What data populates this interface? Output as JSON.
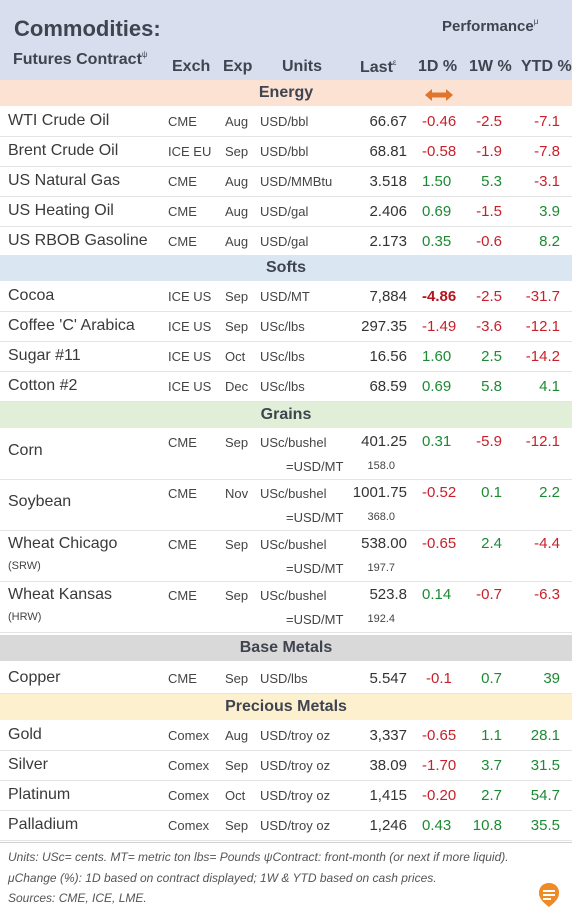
{
  "header": {
    "title": "Commodities:",
    "subtitle": "Futures Contract",
    "subtitle_sup": "ψ",
    "performance": "Performance",
    "performance_sup": "μ",
    "col_exch": "Exch",
    "col_exp": "Exp",
    "col_units": "Units",
    "col_last": "Last",
    "col_last_sup": "ε",
    "col_1d": "1D %",
    "col_1w": "1W %",
    "col_ytd": "YTD %"
  },
  "sections": {
    "energy": "Energy",
    "softs": "Softs",
    "grains": "Grains",
    "base_metals": "Base Metals",
    "precious_metals": "Precious Metals"
  },
  "energy": [
    {
      "name": "WTI Crude Oil",
      "exch": "CME",
      "exp": "Aug",
      "units": "USD/bbl",
      "last": "66.67",
      "d1": "-0.46",
      "w1": "-2.5",
      "ytd": "-7.1"
    },
    {
      "name": "Brent Crude Oil",
      "exch": "ICE EU",
      "exp": "Sep",
      "units": "USD/bbl",
      "last": "68.81",
      "d1": "-0.58",
      "w1": "-1.9",
      "ytd": "-7.8"
    },
    {
      "name": "US Natural Gas",
      "exch": "CME",
      "exp": "Aug",
      "units": "USD/MMBtu",
      "last": "3.518",
      "d1": "1.50",
      "w1": "5.3",
      "ytd": "-3.1"
    },
    {
      "name": "US Heating Oil",
      "exch": "CME",
      "exp": "Aug",
      "units": "USD/gal",
      "last": "2.406",
      "d1": "0.69",
      "w1": "-1.5",
      "ytd": "3.9"
    },
    {
      "name": "US RBOB Gasoline",
      "exch": "CME",
      "exp": "Aug",
      "units": "USD/gal",
      "last": "2.173",
      "d1": "0.35",
      "w1": "-0.6",
      "ytd": "8.2"
    }
  ],
  "softs": [
    {
      "name": "Cocoa",
      "exch": "ICE US",
      "exp": "Sep",
      "units": "USD/MT",
      "last": "7,884",
      "d1": "-4.86",
      "w1": "-2.5",
      "ytd": "-31.7"
    },
    {
      "name": "Coffee 'C' Arabica",
      "exch": "ICE US",
      "exp": "Sep",
      "units": "USc/lbs",
      "last": "297.35",
      "d1": "-1.49",
      "w1": "-3.6",
      "ytd": "-12.1"
    },
    {
      "name": "Sugar #11",
      "exch": "ICE US",
      "exp": "Oct",
      "units": "USc/lbs",
      "last": "16.56",
      "d1": "1.60",
      "w1": "2.5",
      "ytd": "-14.2"
    },
    {
      "name": "Cotton #2",
      "exch": "ICE US",
      "exp": "Dec",
      "units": "USc/lbs",
      "last": "68.59",
      "d1": "0.69",
      "w1": "5.8",
      "ytd": "4.1"
    }
  ],
  "grains": [
    {
      "name": "Corn",
      "sub": "",
      "exch": "CME",
      "exp": "Sep",
      "units": "USc/bushel",
      "units2": "=USD/MT",
      "last": "401.25",
      "last2": "158.0",
      "d1": "0.31",
      "w1": "-5.9",
      "ytd": "-12.1"
    },
    {
      "name": "Soybean",
      "sub": "",
      "exch": "CME",
      "exp": "Nov",
      "units": "USc/bushel",
      "units2": "=USD/MT",
      "last": "1001.75",
      "last2": "368.0",
      "d1": "-0.52",
      "w1": "0.1",
      "ytd": "2.2"
    },
    {
      "name": "Wheat Chicago",
      "sub": "(SRW)",
      "exch": "CME",
      "exp": "Sep",
      "units": "USc/bushel",
      "units2": "=USD/MT",
      "last": "538.00",
      "last2": "197.7",
      "d1": "-0.65",
      "w1": "2.4",
      "ytd": "-4.4"
    },
    {
      "name": "Wheat Kansas",
      "sub": "(HRW)",
      "exch": "CME",
      "exp": "Sep",
      "units": "USc/bushel",
      "units2": "=USD/MT",
      "last": "523.8",
      "last2": "192.4",
      "d1": "0.14",
      "w1": "-0.7",
      "ytd": "-6.3"
    }
  ],
  "base_metals": [
    {
      "name": "Copper",
      "exch": "CME",
      "exp": "Sep",
      "units": "USD/lbs",
      "last": "5.547",
      "d1": "-0.1",
      "w1": "0.7",
      "ytd": "39"
    }
  ],
  "precious_metals": [
    {
      "name": "Gold",
      "exch": "Comex",
      "exp": "Aug",
      "units": "USD/troy oz",
      "last": "3,337",
      "d1": "-0.65",
      "w1": "1.1",
      "ytd": "28.1"
    },
    {
      "name": "Silver",
      "exch": "Comex",
      "exp": "Sep",
      "units": "USD/troy oz",
      "last": "38.09",
      "d1": "-1.70",
      "w1": "3.7",
      "ytd": "31.5"
    },
    {
      "name": "Platinum",
      "exch": "Comex",
      "exp": "Oct",
      "units": "USD/troy oz",
      "last": "1,415",
      "d1": "-0.20",
      "w1": "2.7",
      "ytd": "54.7"
    },
    {
      "name": "Palladium",
      "exch": "Comex",
      "exp": "Sep",
      "units": "USD/troy oz",
      "last": "1,246",
      "d1": "0.43",
      "w1": "10.8",
      "ytd": "35.5"
    }
  ],
  "footnotes": {
    "line1": "Units: USc= cents.   MT= metric ton    lbs= Pounds   ψContract: front-month (or next if more liquid).",
    "line2": "μChange (%): 1D based on contract displayed; 1W & YTD based on cash prices.",
    "line3": "Sources: CME, ICE, LME."
  },
  "colors": {
    "header_bg": "#d9deee",
    "energy_bg": "#fbe2d2",
    "softs_bg": "#dbe6f3",
    "grains_bg": "#e1efd9",
    "base_bg": "#d9d9d9",
    "precious_bg": "#fdf0cf",
    "positive": "#1c8a33",
    "negative": "#c8202a",
    "arrow": "#e0752c"
  },
  "icons": {
    "sort_arrow": "double-arrow-icon",
    "logo": "brand-logo-icon"
  }
}
